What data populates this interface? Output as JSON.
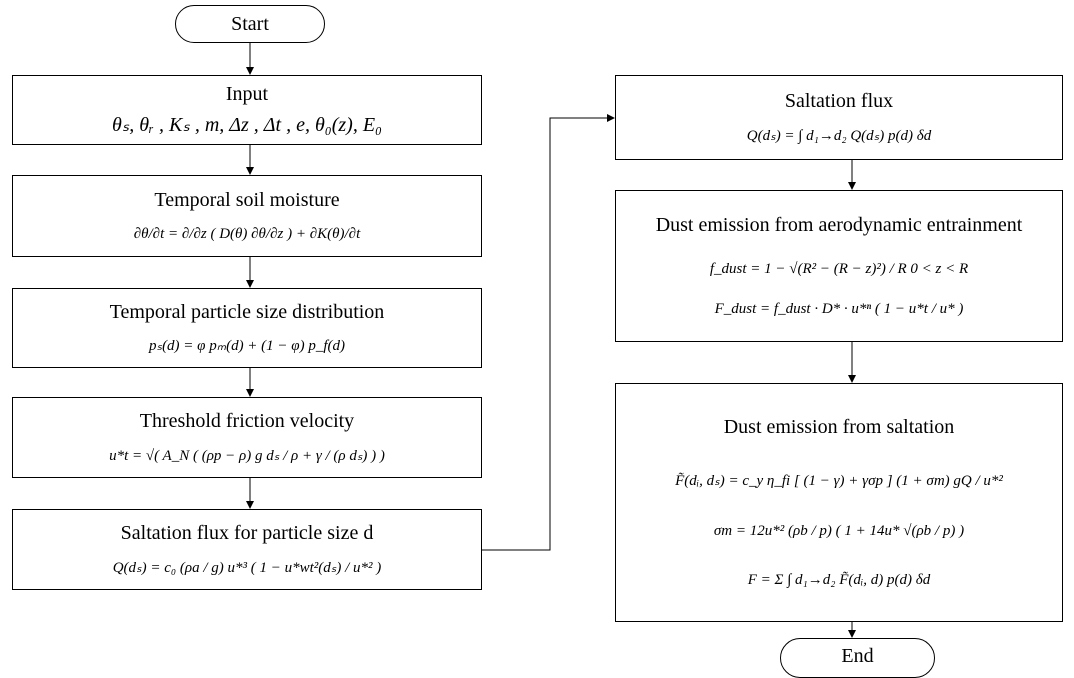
{
  "start": "Start",
  "end": "End",
  "nodes": [
    {
      "title": "Input",
      "formulas": [
        "θₛ, θᵣ , Kₛ , m, Δz , Δt , e, θ₀(z), E₀"
      ]
    },
    {
      "title": "Temporal soil moisture",
      "formulas": [
        "∂θ/∂t = ∂/∂z ( D(θ) ∂θ/∂z ) + ∂K(θ)/∂t"
      ]
    },
    {
      "title": "Temporal particle size distribution",
      "formulas": [
        "pₛ(d) = φ pₘ(d) + (1 − φ) p_f(d)"
      ]
    },
    {
      "title": "Threshold friction velocity",
      "formulas": [
        "u*t = √( A_N ( (ρp − ρ) g dₛ / ρ + γ / (ρ dₛ) ) )"
      ]
    },
    {
      "title": "Saltation flux for particle size d",
      "formulas": [
        "Q(dₛ) = c₀ (ρa / g) u*³ ( 1 − u*wt²(dₛ) / u*² )"
      ]
    },
    {
      "title": "Saltation flux",
      "formulas": [
        "Q(dₛ) = ∫ d₁→d₂ Q(dₛ) p(d) δd"
      ]
    },
    {
      "title": "Dust emission from  aerodynamic entrainment",
      "formulas": [
        "f_dust = 1 − √(R² − (R − z)²) / R    0 < z < R",
        "F_dust = f_dust · D* · u*ⁿ ( 1 − u*t / u* )"
      ]
    },
    {
      "title": "Dust emission from saltation",
      "formulas": [
        "F̃(dᵢ, dₛ) = c_y η_fi [ (1 − γ) + γσp ] (1 + σm) gQ / u*²",
        "σm = 12u*² (ρb / p) ( 1 + 14u* √(ρb / p) )",
        "F = Σ ∫ d₁→d₂ F̃(dᵢ, d) p(d) δd"
      ]
    }
  ]
}
